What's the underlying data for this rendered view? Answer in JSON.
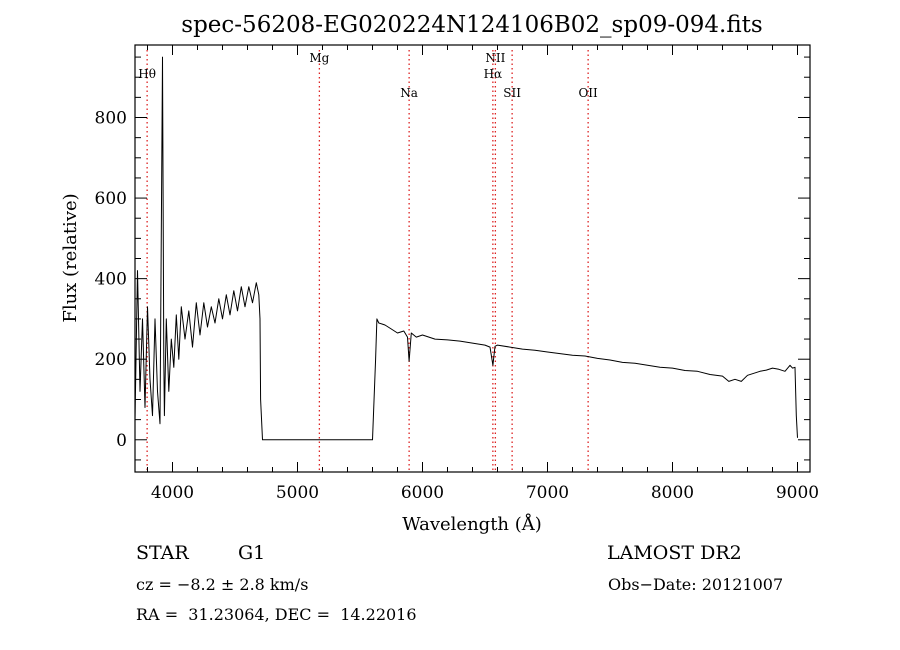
{
  "chart_data": {
    "type": "line",
    "title": "spec-56208-EG020224N124106B02_sp09-094.fits",
    "xlabel": "Wavelength (Å)",
    "ylabel": "Flux (relative)",
    "xlim": [
      3700,
      9100
    ],
    "ylim": [
      -80,
      980
    ],
    "x_ticks": [
      4000,
      5000,
      6000,
      7000,
      8000,
      9000
    ],
    "y_ticks": [
      0,
      200,
      400,
      600,
      800
    ],
    "grid": false,
    "line_markers": [
      {
        "name": "Hθ",
        "x": 3797,
        "label_level": 1
      },
      {
        "name": "Mg",
        "x": 5175,
        "label_level": 0
      },
      {
        "name": "Na",
        "x": 5893,
        "label_level": 2
      },
      {
        "name": "NII",
        "x": 6583,
        "label_level": 0
      },
      {
        "name": "Hα",
        "x": 6563,
        "label_level": 1
      },
      {
        "name": "SII",
        "x": 6717,
        "label_level": 2
      },
      {
        "name": "OII",
        "x": 7325,
        "label_level": 2
      }
    ],
    "series": [
      {
        "x": [
          3700,
          3720,
          3740,
          3760,
          3780,
          3800,
          3820,
          3840,
          3860,
          3880,
          3900,
          3920,
          3930,
          3935,
          3950,
          3970,
          3990,
          4010,
          4030,
          4050,
          4070,
          4100,
          4130,
          4160,
          4190,
          4220,
          4250,
          4280,
          4310,
          4340,
          4370,
          4400,
          4430,
          4460,
          4490,
          4520,
          4550,
          4580,
          4610,
          4640,
          4670,
          4690,
          4700,
          4705,
          4720,
          5000,
          5300,
          5600,
          5625,
          5635,
          5650,
          5700,
          5750,
          5800,
          5850,
          5880,
          5893,
          5910,
          5950,
          6000,
          6100,
          6200,
          6300,
          6400,
          6500,
          6540,
          6563,
          6580,
          6600,
          6700,
          6800,
          6900,
          7000,
          7100,
          7200,
          7300,
          7400,
          7500,
          7600,
          7700,
          7800,
          7900,
          8000,
          8100,
          8200,
          8300,
          8400,
          8450,
          8500,
          8550,
          8600,
          8650,
          8700,
          8750,
          8800,
          8850,
          8900,
          8940,
          8960,
          8980,
          8990,
          9000
        ],
        "y": [
          50,
          420,
          120,
          300,
          80,
          330,
          150,
          60,
          300,
          120,
          40,
          950,
          200,
          60,
          300,
          120,
          250,
          180,
          310,
          200,
          330,
          250,
          320,
          230,
          340,
          260,
          340,
          280,
          330,
          290,
          350,
          300,
          360,
          310,
          370,
          320,
          380,
          330,
          380,
          340,
          390,
          360,
          300,
          100,
          0,
          0,
          0,
          0,
          200,
          300,
          290,
          285,
          275,
          265,
          270,
          255,
          195,
          265,
          255,
          260,
          250,
          248,
          245,
          240,
          235,
          230,
          185,
          232,
          235,
          230,
          225,
          222,
          218,
          214,
          210,
          208,
          202,
          198,
          192,
          190,
          185,
          180,
          178,
          172,
          170,
          162,
          158,
          145,
          150,
          145,
          160,
          165,
          170,
          173,
          178,
          175,
          170,
          185,
          178,
          180,
          60,
          5
        ]
      }
    ]
  },
  "info": {
    "object_class": "STAR",
    "subclass": "G1",
    "survey": "LAMOST DR2",
    "cz": "cz = −8.2 ± 2.8 km/s",
    "obs_date": "Obs−Date: 20121007",
    "coords": "RA =  31.23064, DEC =  14.22016"
  }
}
